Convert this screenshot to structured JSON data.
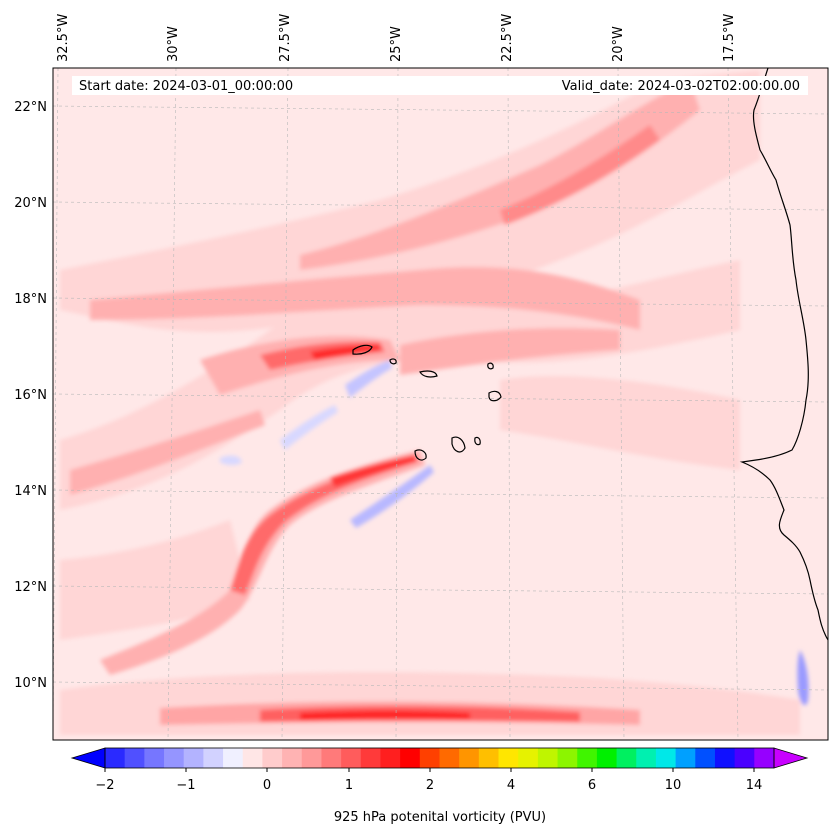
{
  "info": {
    "start_date": "Start date: 2024-03-01_00:00:00",
    "valid_date": "Valid_date: 2024-03-02T02:00:00.00"
  },
  "lon_labels": [
    "32.5°W",
    "30°W",
    "27.5°W",
    "25°W",
    "22.5°W",
    "20°W",
    "17.5°W"
  ],
  "lat_labels": [
    "22°N",
    "20°N",
    "18°N",
    "16°N",
    "14°N",
    "12°N",
    "10°N"
  ],
  "colorbar": {
    "title": "925 hPa potenital vorticity (PVU)",
    "tick_labels": [
      "−2",
      "−1",
      "0",
      "1",
      "2",
      "4",
      "6",
      "10",
      "14"
    ],
    "colors": [
      "#0000ff",
      "#2a2aff",
      "#5050ff",
      "#7676ff",
      "#9595ff",
      "#b3b3ff",
      "#d2d2ff",
      "#f0f0ff",
      "#ffe6e6",
      "#ffcccc",
      "#ffb3b3",
      "#ff9999",
      "#ff7a7a",
      "#ff5c5c",
      "#ff3a3a",
      "#ff1f1f",
      "#ff0000",
      "#ff4000",
      "#ff6a00",
      "#ff9500",
      "#ffbf00",
      "#ffe600",
      "#e6f200",
      "#bff500",
      "#8cf500",
      "#40f500",
      "#00f000",
      "#00f060",
      "#00f0b0",
      "#00e8e8",
      "#00a0ff",
      "#0050ff",
      "#1010ff",
      "#4a00ff",
      "#9600ff",
      "#c800ff"
    ],
    "extend": "both"
  },
  "map": {
    "background_color": "#ffe8e8",
    "lon_range": [
      "32.5°W",
      "15.5°W"
    ],
    "lat_range": [
      "9°N",
      "22.7°N"
    ],
    "gridlines": true
  }
}
